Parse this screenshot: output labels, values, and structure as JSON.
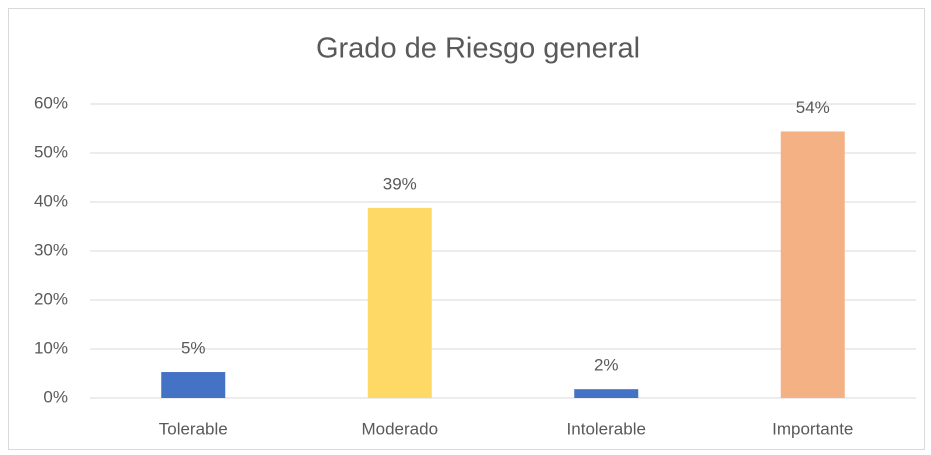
{
  "chart_data": {
    "type": "bar",
    "title": "Grado de Riesgo general",
    "categories": [
      "Tolerable",
      "Moderado",
      "Intolerable",
      "Importante"
    ],
    "values": [
      5.3,
      38.8,
      1.8,
      54.4
    ],
    "value_labels": [
      "5%",
      "39%",
      "2%",
      "54%"
    ],
    "colors": [
      "#4472c4",
      "#ffd966",
      "#4472c4",
      "#f4b183"
    ],
    "ylim": [
      0,
      60
    ],
    "yticks": [
      {
        "value": 0,
        "label": "0%"
      },
      {
        "value": 10,
        "label": "10%"
      },
      {
        "value": 20,
        "label": "20%"
      },
      {
        "value": 30,
        "label": "30%"
      },
      {
        "value": 40,
        "label": "40%"
      },
      {
        "value": 50,
        "label": "50%"
      },
      {
        "value": 60,
        "label": "60%"
      }
    ],
    "grid": true
  }
}
